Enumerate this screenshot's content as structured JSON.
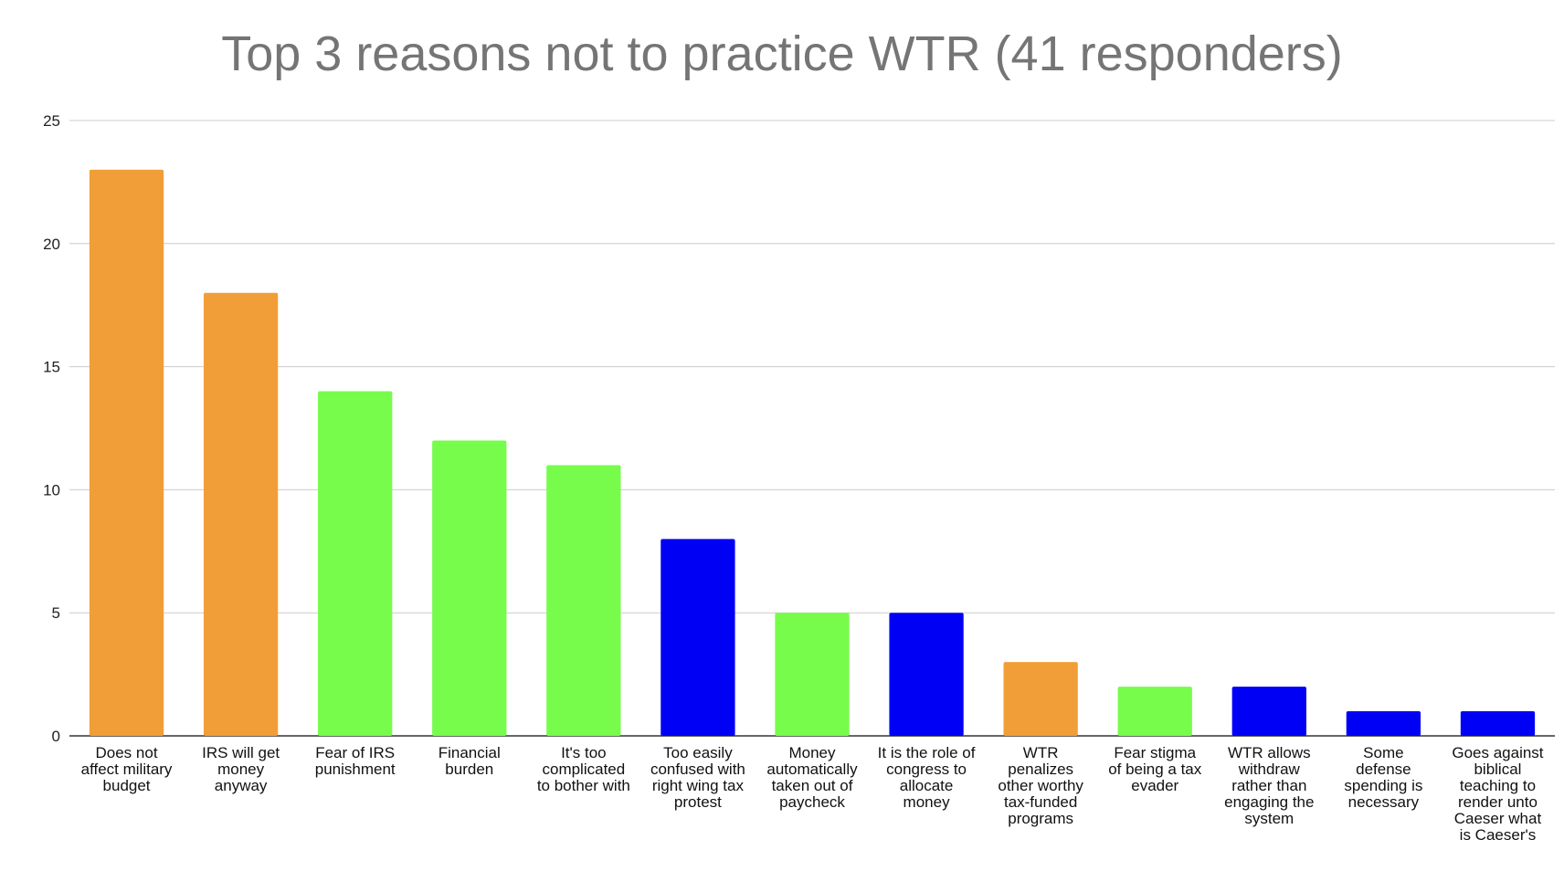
{
  "chart_data": {
    "type": "bar",
    "title": "Top 3 reasons not to practice WTR (41 responders)",
    "xlabel": "",
    "ylabel": "",
    "ylim": [
      0,
      25
    ],
    "yticks": [
      0,
      5,
      10,
      15,
      20,
      25
    ],
    "grid": true,
    "legend": "none",
    "categories": [
      [
        "Does not",
        "affect military",
        "budget"
      ],
      [
        "IRS will get",
        "money",
        "anyway"
      ],
      [
        "Fear of IRS",
        "punishment"
      ],
      [
        "Financial",
        "burden"
      ],
      [
        "It's too",
        "complicated",
        "to bother with"
      ],
      [
        "Too easily",
        "confused with",
        "right wing tax",
        "protest"
      ],
      [
        "Money",
        "automatically",
        "taken out of",
        "paycheck"
      ],
      [
        "It is the role of",
        "congress to",
        "allocate",
        "money"
      ],
      [
        "WTR",
        "penalizes",
        "other worthy",
        "tax-funded",
        "programs"
      ],
      [
        "Fear stigma",
        "of being a tax",
        "evader"
      ],
      [
        "WTR allows",
        "withdraw",
        "rather than",
        "engaging the",
        "system"
      ],
      [
        "Some",
        "defense",
        "spending is",
        "necessary"
      ],
      [
        "Goes against",
        "biblical",
        "teaching to",
        "render unto",
        "Caeser what",
        "is Caeser's"
      ]
    ],
    "values": [
      23,
      18,
      14,
      12,
      11,
      8,
      5,
      5,
      3,
      2,
      2,
      1,
      1
    ],
    "colors": [
      "#f19e38",
      "#f19e38",
      "#77fc4c",
      "#77fc4c",
      "#77fc4c",
      "#0000f5",
      "#77fc4c",
      "#0000f5",
      "#f19e38",
      "#77fc4c",
      "#0000f5",
      "#0000f5",
      "#0000f5"
    ]
  }
}
